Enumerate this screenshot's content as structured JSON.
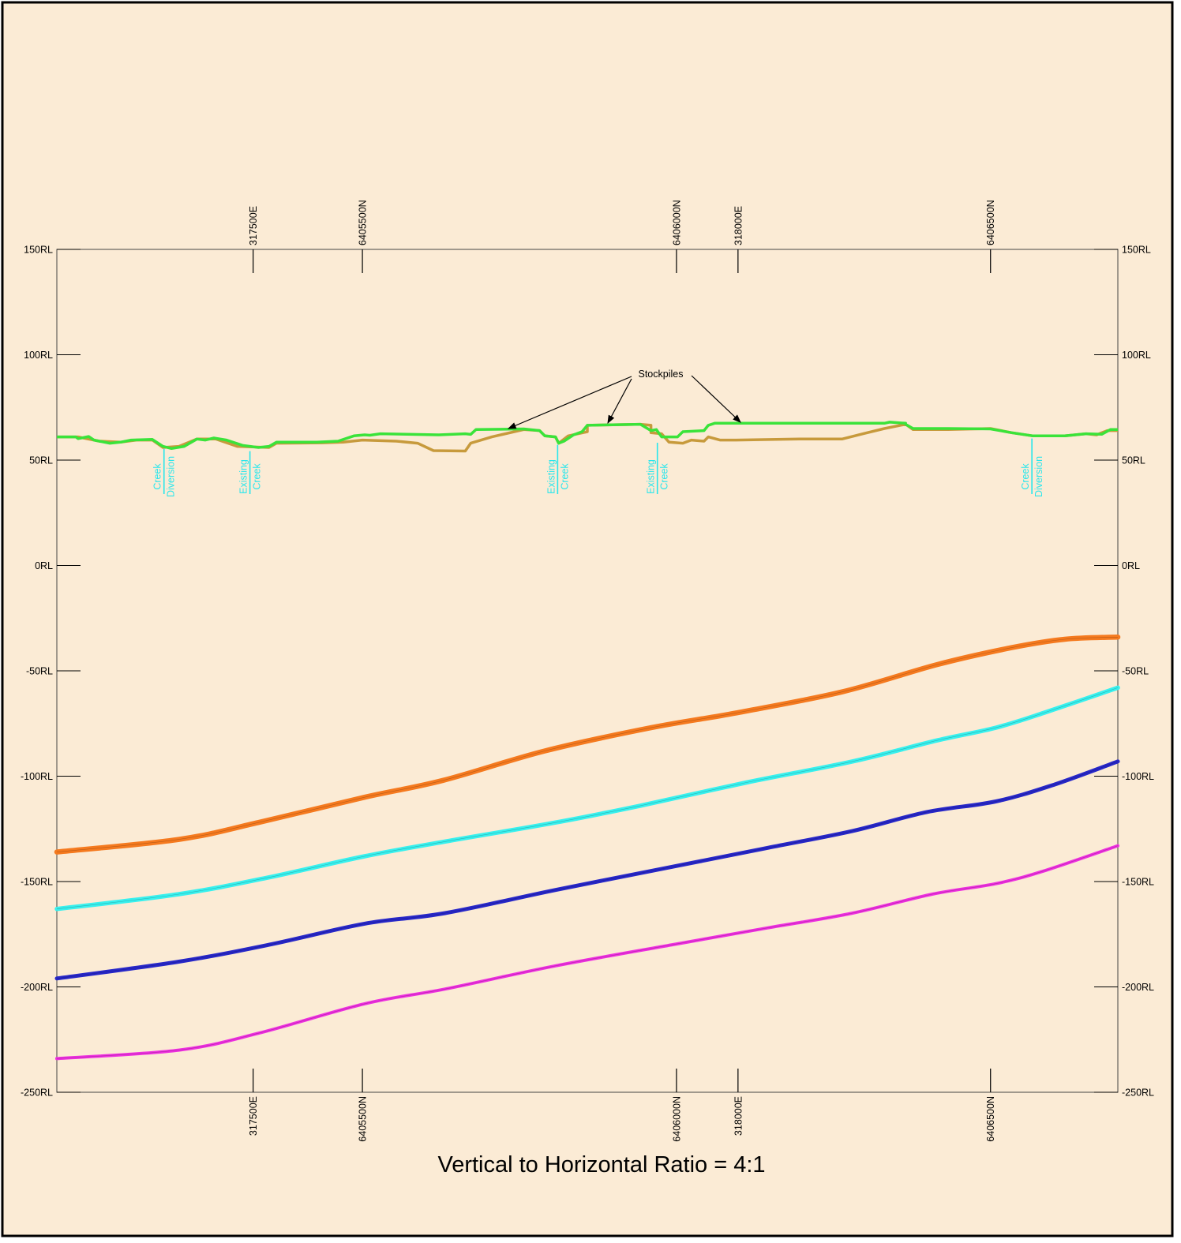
{
  "section": {
    "ratio_label": "Vertical to Horizontal Ratio = 4:1",
    "rl_ticks": [
      "150RL",
      "100RL",
      "50RL",
      "0RL",
      "-50RL",
      "-100RL",
      "-150RL",
      "-200RL",
      "-250RL"
    ],
    "rl_values": [
      150,
      100,
      50,
      0,
      -50,
      -100,
      -150,
      -200,
      -250
    ],
    "coord_markers": [
      {
        "label": "317500E",
        "chainage": 0.185
      },
      {
        "label": "6405500N",
        "chainage": 0.288
      },
      {
        "label": "6406000N",
        "chainage": 0.584
      },
      {
        "label": "318000E",
        "chainage": 0.642
      },
      {
        "label": "6406500N",
        "chainage": 0.88
      }
    ],
    "stockpiles_label": "Stockpiles",
    "creek_labels": [
      {
        "line1": "Creek",
        "line2": "Diversion",
        "chainage": 0.101,
        "rl": 56
      },
      {
        "line1": "Existing",
        "line2": "Creek",
        "chainage": 0.182,
        "rl": 55
      },
      {
        "line1": "Existing",
        "line2": "Creek",
        "chainage": 0.472,
        "rl": 58
      },
      {
        "line1": "Existing",
        "line2": "Creek",
        "chainage": 0.566,
        "rl": 59
      },
      {
        "line1": "Creek",
        "line2": "Diversion",
        "chainage": 0.919,
        "rl": 61
      }
    ],
    "colors": {
      "background": "#fbebd5",
      "surface": "#3ae33a",
      "original_ground": "#c79a3c",
      "seam_orange": "#f57a1f",
      "seam_cyan": "#38f0ee",
      "seam_blue": "#2727c8",
      "seam_magenta": "#ee30e0",
      "creek_label": "#29e6ec"
    }
  }
}
